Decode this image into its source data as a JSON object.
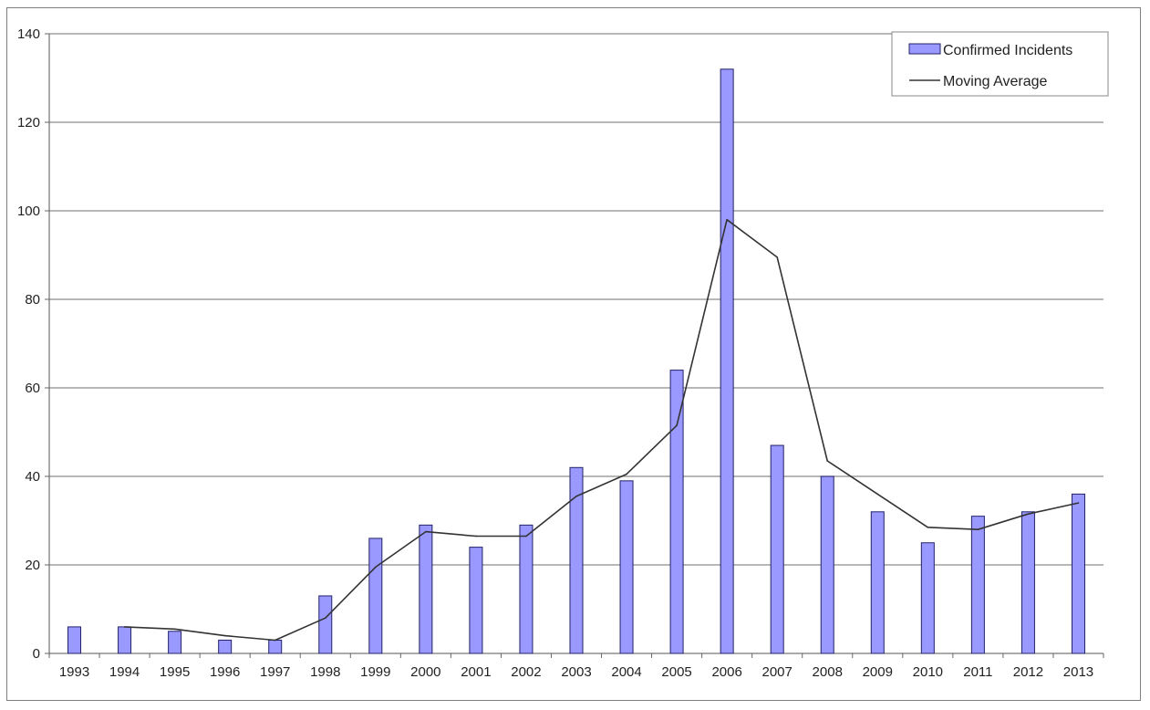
{
  "chart_data": {
    "type": "bar",
    "title": "",
    "xlabel": "",
    "ylabel": "",
    "categories": [
      "1993",
      "1994",
      "1995",
      "1996",
      "1997",
      "1998",
      "1999",
      "2000",
      "2001",
      "2002",
      "2003",
      "2004",
      "2005",
      "2006",
      "2007",
      "2008",
      "2009",
      "2010",
      "2011",
      "2012",
      "2013"
    ],
    "ylim": [
      0,
      140
    ],
    "yticks": [
      0,
      20,
      40,
      60,
      80,
      100,
      120,
      140
    ],
    "grid": true,
    "legend_position": "top-right",
    "series": [
      {
        "name": "Confirmed Incidents",
        "type": "bar",
        "color": "#9999ff",
        "values": [
          6,
          6,
          5,
          3,
          3,
          13,
          26,
          29,
          24,
          29,
          42,
          39,
          64,
          132,
          47,
          40,
          32,
          25,
          31,
          32,
          36
        ]
      },
      {
        "name": "Moving Average",
        "type": "line",
        "color": "#333333",
        "values": [
          null,
          6,
          5.5,
          4,
          3,
          8,
          19.5,
          27.5,
          26.5,
          26.5,
          35.5,
          40.5,
          51.5,
          98,
          89.5,
          43.5,
          36,
          28.5,
          28,
          31.5,
          34
        ]
      }
    ]
  }
}
